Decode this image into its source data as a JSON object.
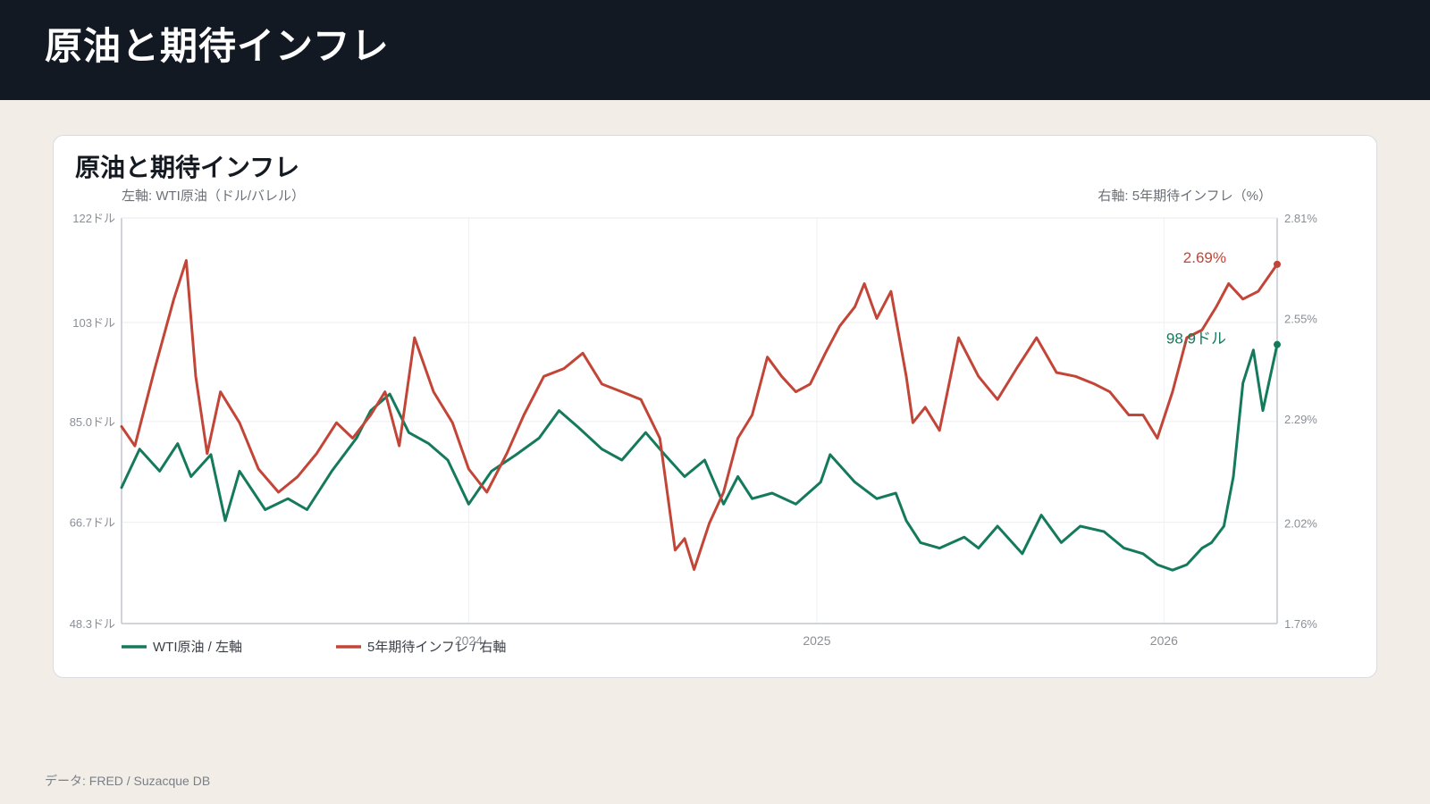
{
  "header": {
    "title": "原油と期待インフレ"
  },
  "card": {
    "title": "原油と期待インフレ"
  },
  "footer": {
    "source": "データ: FRED / Suzacque DB"
  },
  "chart_data": {
    "type": "line",
    "title": "原油と期待インフレ",
    "left_axis": {
      "label": "左軸: WTI原油（ドル/バレル）",
      "ticks": [
        48.3,
        66.7,
        85.0,
        103,
        122
      ],
      "tick_labels": [
        "48.3ドル",
        "66.7ドル",
        "85.0ドル",
        "103ドル",
        "122ドル"
      ],
      "ylim": [
        48.3,
        122
      ]
    },
    "right_axis": {
      "label": "右軸: 5年期待インフレ（%）",
      "ticks": [
        1.76,
        2.02,
        2.29,
        2.55,
        2.81
      ],
      "tick_labels": [
        "1.76%",
        "2.02%",
        "2.29%",
        "2.55%",
        "2.81%"
      ],
      "ylim": [
        1.76,
        2.81
      ]
    },
    "x_axis": {
      "ticks": [
        "2024-01-01",
        "2025-01-01",
        "2026-01-01"
      ],
      "tick_labels": [
        "2024",
        "2025",
        "2026"
      ],
      "xlim": [
        "2023-01-01",
        "2026-04-30"
      ]
    },
    "grid": true,
    "legend_position": "bottom-left",
    "series": [
      {
        "name": "WTI原油 / 左軸",
        "axis": "left",
        "color": "#157a5c",
        "end_label": "98.9ドル",
        "x": [
          "2023-01-01",
          "2023-01-20",
          "2023-02-10",
          "2023-03-01",
          "2023-03-15",
          "2023-04-05",
          "2023-04-20",
          "2023-05-05",
          "2023-06-01",
          "2023-06-25",
          "2023-07-15",
          "2023-08-10",
          "2023-09-05",
          "2023-09-20",
          "2023-10-10",
          "2023-10-30",
          "2023-11-20",
          "2023-12-10",
          "2024-01-01",
          "2024-01-25",
          "2024-02-20",
          "2024-03-15",
          "2024-04-05",
          "2024-04-25",
          "2024-05-20",
          "2024-06-10",
          "2024-07-05",
          "2024-07-25",
          "2024-08-15",
          "2024-09-05",
          "2024-09-25",
          "2024-10-10",
          "2024-10-25",
          "2024-11-15",
          "2024-12-10",
          "2025-01-05",
          "2025-01-15",
          "2025-02-10",
          "2025-03-05",
          "2025-03-25",
          "2025-04-05",
          "2025-04-20",
          "2025-05-10",
          "2025-06-05",
          "2025-06-20",
          "2025-07-10",
          "2025-08-05",
          "2025-08-25",
          "2025-09-15",
          "2025-10-05",
          "2025-10-30",
          "2025-11-20",
          "2025-12-10",
          "2025-12-25",
          "2026-01-10",
          "2026-01-25",
          "2026-02-10",
          "2026-02-20",
          "2026-03-05",
          "2026-03-15",
          "2026-03-25",
          "2026-04-05",
          "2026-04-15",
          "2026-04-30"
        ],
        "values": [
          73,
          80,
          76,
          81,
          75,
          79,
          67,
          76,
          69,
          71,
          69,
          76,
          82,
          87,
          90,
          83,
          81,
          78,
          70,
          76,
          79,
          82,
          87,
          84,
          80,
          78,
          83,
          79,
          75,
          78,
          70,
          75,
          71,
          72,
          70,
          74,
          79,
          74,
          71,
          72,
          67,
          63,
          62,
          64,
          62,
          66,
          61,
          68,
          63,
          66,
          65,
          62,
          61,
          59,
          58,
          59,
          62,
          63,
          66,
          75,
          92,
          98,
          87,
          99
        ]
      },
      {
        "name": "5年期待インフレ / 右軸",
        "axis": "right",
        "color": "#c24537",
        "end_label": "2.69%",
        "x": [
          "2023-01-01",
          "2023-01-15",
          "2023-02-05",
          "2023-02-25",
          "2023-03-10",
          "2023-03-20",
          "2023-04-01",
          "2023-04-15",
          "2023-05-05",
          "2023-05-25",
          "2023-06-15",
          "2023-07-05",
          "2023-07-25",
          "2023-08-15",
          "2023-09-01",
          "2023-09-20",
          "2023-10-05",
          "2023-10-20",
          "2023-11-05",
          "2023-11-25",
          "2023-12-15",
          "2024-01-01",
          "2024-01-20",
          "2024-02-10",
          "2024-02-28",
          "2024-03-20",
          "2024-04-10",
          "2024-04-30",
          "2024-05-20",
          "2024-06-10",
          "2024-06-30",
          "2024-07-20",
          "2024-08-05",
          "2024-08-15",
          "2024-08-25",
          "2024-09-10",
          "2024-09-25",
          "2024-10-10",
          "2024-10-25",
          "2024-11-10",
          "2024-11-25",
          "2024-12-10",
          "2024-12-25",
          "2025-01-10",
          "2025-01-25",
          "2025-02-10",
          "2025-02-20",
          "2025-03-05",
          "2025-03-20",
          "2025-04-05",
          "2025-04-12",
          "2025-04-25",
          "2025-05-10",
          "2025-05-30",
          "2025-06-20",
          "2025-07-10",
          "2025-07-30",
          "2025-08-20",
          "2025-09-10",
          "2025-09-30",
          "2025-10-20",
          "2025-11-05",
          "2025-11-25",
          "2025-12-10",
          "2025-12-25",
          "2026-01-10",
          "2026-01-25",
          "2026-02-10",
          "2026-02-25",
          "2026-03-10",
          "2026-03-25",
          "2026-04-10",
          "2026-04-30"
        ],
        "values": [
          2.27,
          2.22,
          2.42,
          2.6,
          2.7,
          2.4,
          2.2,
          2.36,
          2.28,
          2.16,
          2.1,
          2.14,
          2.2,
          2.28,
          2.24,
          2.3,
          2.36,
          2.22,
          2.5,
          2.36,
          2.28,
          2.16,
          2.1,
          2.2,
          2.3,
          2.4,
          2.42,
          2.46,
          2.38,
          2.36,
          2.34,
          2.24,
          1.95,
          1.98,
          1.9,
          2.02,
          2.1,
          2.24,
          2.3,
          2.45,
          2.4,
          2.36,
          2.38,
          2.46,
          2.53,
          2.58,
          2.64,
          2.55,
          2.62,
          2.4,
          2.28,
          2.32,
          2.26,
          2.5,
          2.4,
          2.34,
          2.42,
          2.5,
          2.41,
          2.4,
          2.38,
          2.36,
          2.3,
          2.3,
          2.24,
          2.36,
          2.5,
          2.52,
          2.58,
          2.64,
          2.6,
          2.62,
          2.69
        ]
      }
    ]
  }
}
